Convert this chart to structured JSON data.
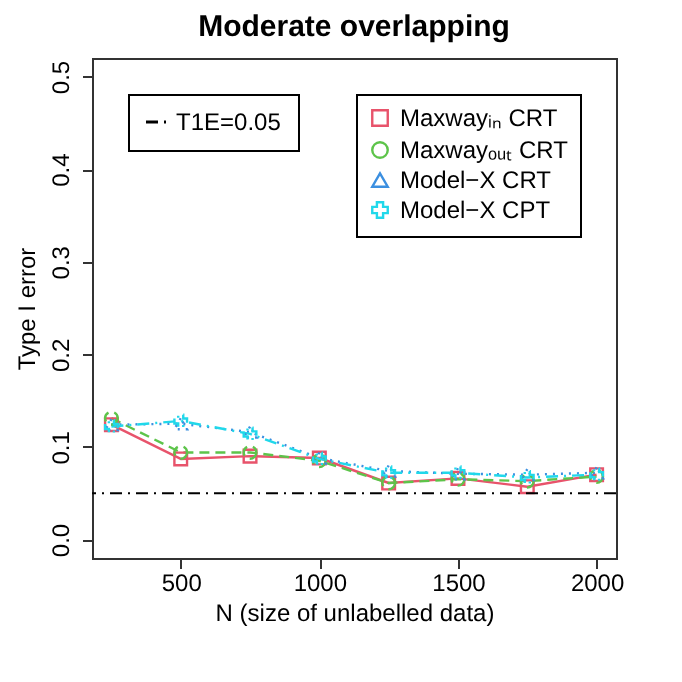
{
  "chart_data": {
    "type": "line",
    "title": "Moderate overlapping",
    "xlabel": "N (size of unlabelled data)",
    "ylabel": "Type I error",
    "x": [
      250,
      500,
      750,
      1000,
      1250,
      1500,
      1750,
      2000
    ],
    "series": [
      {
        "name": "Maxwayᵢₙ CRT",
        "color": "#e8536b",
        "marker": "square",
        "line_style": "solid",
        "values": [
          0.124,
          0.087,
          0.09,
          0.088,
          0.061,
          0.066,
          0.057,
          0.07
        ]
      },
      {
        "name": "Maxwayₒᵤₜ CRT",
        "color": "#5dc44a",
        "marker": "circle",
        "line_style": "dashed",
        "values": [
          0.131,
          0.094,
          0.094,
          0.085,
          0.061,
          0.065,
          0.063,
          0.068
        ]
      },
      {
        "name": "Model−X CRT",
        "color": "#3b8fe0",
        "marker": "triangle",
        "line_style": "dotted",
        "values": [
          0.124,
          0.125,
          0.116,
          0.088,
          0.074,
          0.071,
          0.07,
          0.072
        ]
      },
      {
        "name": "Model−X CPT",
        "color": "#20d8ea",
        "marker": "cross",
        "line_style": "dashdot",
        "values": [
          0.122,
          0.128,
          0.114,
          0.087,
          0.072,
          0.072,
          0.067,
          0.07
        ]
      }
    ],
    "xlim": [
      180,
      2070
    ],
    "xticks": [
      500,
      1000,
      1500,
      2000
    ],
    "ylim": [
      -0.02,
      0.52
    ],
    "yticks": [
      {
        "value": 0,
        "label": "0.0"
      },
      0.1,
      0.2,
      0.3,
      0.4,
      0.5
    ],
    "ref_lines": [
      {
        "axis": "y",
        "value": 0.05,
        "label": "T1E=0.05",
        "color": "#000000",
        "line_style": "dashdot"
      }
    ],
    "legend": "top right",
    "grid": false
  }
}
